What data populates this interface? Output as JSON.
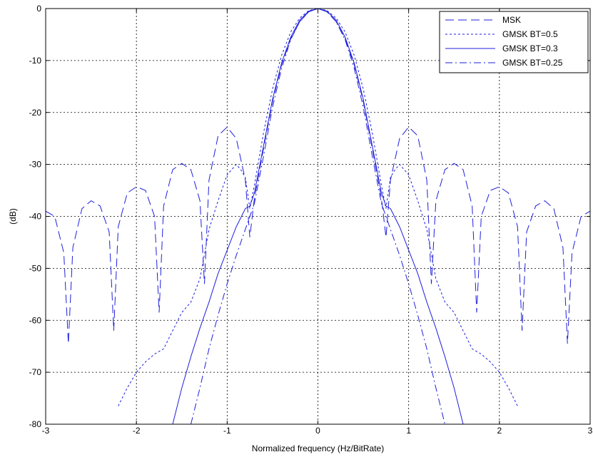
{
  "chart_data": {
    "type": "line",
    "title": "",
    "xlabel": "Normalized frequency (Hz/BitRate)",
    "ylabel": "(dB)",
    "xlim": [
      -3,
      3
    ],
    "ylim": [
      -80,
      0
    ],
    "xticks": [
      -3,
      -2,
      -1,
      0,
      1,
      2,
      3
    ],
    "yticks": [
      0,
      -10,
      -20,
      -30,
      -40,
      -50,
      -60,
      -70,
      -80
    ],
    "grid": true,
    "legend_position": "top-right",
    "line_color": "#1f1fdc",
    "series": [
      {
        "name": "MSK",
        "style": "dashed",
        "x": [
          0,
          0.1,
          0.2,
          0.3,
          0.4,
          0.5,
          0.6,
          0.7,
          0.75,
          0.8,
          0.9,
          1.0,
          1.1,
          1.2,
          1.25,
          1.3,
          1.4,
          1.5,
          1.6,
          1.7,
          1.75,
          1.8,
          1.9,
          2.0,
          2.1,
          2.2,
          2.25,
          2.3,
          2.4,
          2.5,
          2.6,
          2.7,
          2.75,
          2.8,
          2.9,
          3.0
        ],
        "y": [
          0,
          -0.6,
          -2.5,
          -5.8,
          -10.8,
          -17.9,
          -27.0,
          -36.5,
          -44.0,
          -33.0,
          -25.0,
          -22.8,
          -24.5,
          -33.0,
          -53.0,
          -37.0,
          -31.0,
          -29.8,
          -31.0,
          -38.0,
          -58.5,
          -40.0,
          -35.0,
          -34.3,
          -35.5,
          -42.0,
          -62.0,
          -43.0,
          -38.0,
          -37.0,
          -38.5,
          -46.0,
          -64.5,
          -47.0,
          -40.0,
          -39.0
        ]
      },
      {
        "name": "GMSK BT=0.5",
        "style": "dotted",
        "x": [
          0,
          0.1,
          0.2,
          0.3,
          0.4,
          0.5,
          0.6,
          0.7,
          0.75,
          0.8,
          0.85,
          0.9,
          1.0,
          1.1,
          1.2,
          1.3,
          1.4,
          1.5,
          1.6,
          1.7,
          1.8,
          1.9,
          2.0,
          2.1,
          2.2
        ],
        "y": [
          0,
          -0.4,
          -1.8,
          -4.5,
          -9.0,
          -15.5,
          -24.0,
          -34.0,
          -38.5,
          -32.5,
          -31.0,
          -30.0,
          -32.0,
          -37.0,
          -42.5,
          -52.0,
          -56.5,
          -58.5,
          -62.0,
          -65.5,
          -66.5,
          -68.0,
          -70.0,
          -73.0,
          -76.5
        ]
      },
      {
        "name": "GMSK BT=0.3",
        "style": "solid",
        "x": [
          0,
          0.1,
          0.2,
          0.3,
          0.4,
          0.5,
          0.6,
          0.7,
          0.75,
          0.8,
          0.9,
          1.0,
          1.1,
          1.2,
          1.3,
          1.4,
          1.5,
          1.6
        ],
        "y": [
          0,
          -0.5,
          -2.2,
          -5.5,
          -10.5,
          -17.5,
          -26.5,
          -35.5,
          -38.0,
          -38.5,
          -42.0,
          -46.5,
          -51.0,
          -56.5,
          -61.5,
          -67.0,
          -73.0,
          -80.0
        ]
      },
      {
        "name": "GMSK BT=0.25",
        "style": "dashdot",
        "x": [
          0,
          0.1,
          0.2,
          0.3,
          0.4,
          0.5,
          0.6,
          0.7,
          0.8,
          0.9,
          1.0,
          1.1,
          1.2,
          1.3,
          1.4
        ],
        "y": [
          0,
          -0.6,
          -2.5,
          -6.0,
          -11.5,
          -19.0,
          -28.5,
          -37.5,
          -42.5,
          -47.5,
          -53.0,
          -59.0,
          -65.5,
          -73.0,
          -80.0
        ]
      }
    ]
  }
}
